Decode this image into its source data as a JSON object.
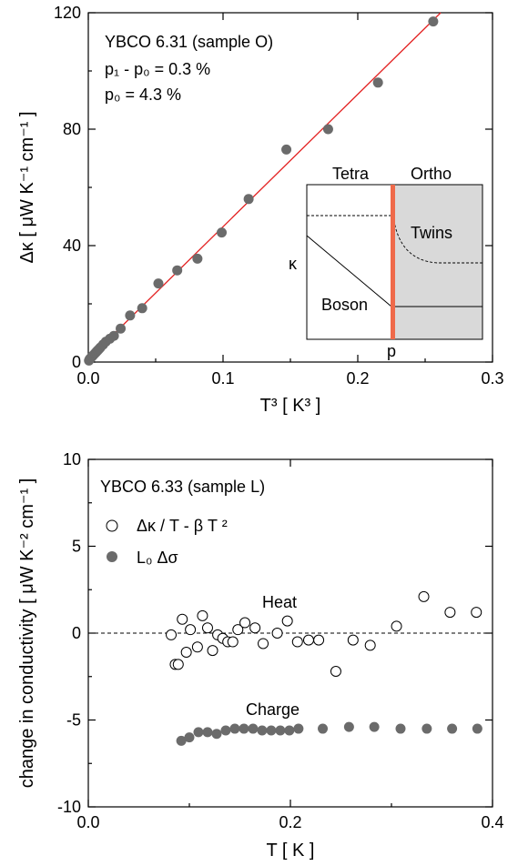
{
  "colors": {
    "fit_line": "#e32222",
    "filled_marker": "#6b6b6b",
    "inset_bar": "#ef6a4a",
    "inset_shade": "#d9d9d9"
  },
  "chart_data": [
    {
      "type": "scatter",
      "xlabel": "T³ [ K³ ]",
      "ylabel": "Δκ [ μW K⁻¹ cm⁻¹ ]",
      "xlim": [
        0,
        0.3
      ],
      "ylim": [
        0,
        120
      ],
      "xticks": [
        "0.0",
        "0.1",
        "0.2",
        "0.3"
      ],
      "yticks": [
        "0",
        "40",
        "80",
        "120"
      ],
      "annotations": [
        "YBCO 6.31 (sample O)",
        "p₁ - p₀ = 0.3 %",
        "p₀ = 4.3 %"
      ],
      "series": [
        {
          "marker": "filled-circle",
          "x": [
            0.0005,
            0.001,
            0.002,
            0.003,
            0.004,
            0.005,
            0.006,
            0.007,
            0.008,
            0.009,
            0.011,
            0.013,
            0.016,
            0.019,
            0.024,
            0.031,
            0.04,
            0.052,
            0.066,
            0.081,
            0.099,
            0.119,
            0.147,
            0.178,
            0.215,
            0.256
          ],
          "y": [
            0.5,
            1,
            1.5,
            2,
            2.5,
            3,
            3.5,
            4,
            4.5,
            5,
            6,
            7,
            8,
            9,
            11.5,
            16,
            18.5,
            27,
            31.5,
            35.5,
            44.5,
            56,
            73,
            80,
            96,
            117
          ]
        },
        {
          "style": "line",
          "x": [
            0,
            0.3
          ],
          "y": [
            1,
            137.5
          ]
        }
      ],
      "inset": {
        "labels": {
          "tetra": "Tetra",
          "ortho": "Ortho",
          "twins": "Twins",
          "boson": "Boson",
          "kappa": "κ",
          "p": "p"
        }
      }
    },
    {
      "type": "scatter",
      "xlabel": "T [ K ]",
      "ylabel": "change in conductivity [ μW K⁻² cm⁻¹ ]",
      "xlim": [
        0,
        0.4
      ],
      "ylim": [
        -10,
        10
      ],
      "xticks": [
        "0.0",
        "0.2",
        "0.4"
      ],
      "yticks": [
        "-10",
        "-5",
        "0",
        "5",
        "10"
      ],
      "title": "YBCO 6.33 (sample L)",
      "annotations": {
        "heat": "Heat",
        "charge": "Charge"
      },
      "series": [
        {
          "name": "Δκ / T - β T ²",
          "marker": "open-circle",
          "x": [
            0.082,
            0.086,
            0.089,
            0.093,
            0.097,
            0.101,
            0.108,
            0.113,
            0.118,
            0.123,
            0.128,
            0.133,
            0.138,
            0.143,
            0.148,
            0.155,
            0.165,
            0.173,
            0.187,
            0.197,
            0.207,
            0.218,
            0.228,
            0.245,
            0.262,
            0.279,
            0.305,
            0.332,
            0.358,
            0.384
          ],
          "y": [
            -0.1,
            -1.8,
            -1.8,
            0.8,
            -1.1,
            0.2,
            -0.8,
            1.0,
            0.3,
            -1.0,
            -0.1,
            -0.3,
            -0.5,
            -0.5,
            0.2,
            0.6,
            0.3,
            -0.6,
            0.0,
            0.7,
            -0.5,
            -0.4,
            -0.4,
            -2.2,
            -0.4,
            -0.7,
            0.4,
            2.1,
            1.2,
            1.2
          ]
        },
        {
          "name": "L₀ Δσ",
          "marker": "filled-circle",
          "x": [
            0.092,
            0.1,
            0.109,
            0.118,
            0.127,
            0.136,
            0.145,
            0.154,
            0.163,
            0.172,
            0.181,
            0.19,
            0.199,
            0.208,
            0.232,
            0.258,
            0.283,
            0.309,
            0.335,
            0.36,
            0.385
          ],
          "y": [
            -6.2,
            -6.0,
            -5.7,
            -5.7,
            -5.8,
            -5.6,
            -5.5,
            -5.5,
            -5.5,
            -5.6,
            -5.6,
            -5.6,
            -5.6,
            -5.5,
            -5.5,
            -5.4,
            -5.4,
            -5.5,
            -5.5,
            -5.5,
            -5.5
          ]
        }
      ]
    }
  ]
}
